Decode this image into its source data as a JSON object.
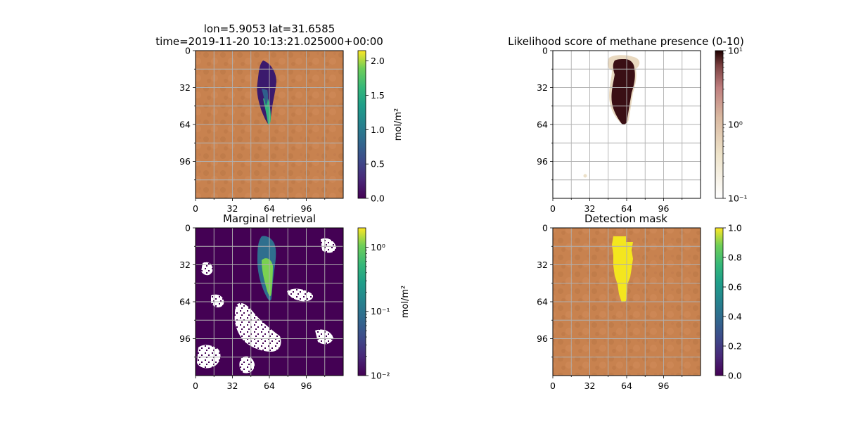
{
  "chart_data": [
    {
      "id": "retrieval",
      "type": "heatmap",
      "title_lines": [
        "lon=5.9053 lat=31.6585",
        "time=2019-11-20 10:13:21.025000+00:00"
      ],
      "background": "terrain-orange",
      "xticks": [
        0,
        32,
        64,
        96
      ],
      "yticks": [
        0,
        32,
        64,
        96
      ],
      "xlim": [
        0,
        128
      ],
      "ylim": [
        128,
        0
      ],
      "grid": true,
      "colormap": "viridis",
      "colorbar": {
        "label": "mol/m²",
        "scale": "linear",
        "range": [
          0,
          2.15
        ],
        "ticks": [
          "0.0",
          "0.5",
          "1.0",
          "1.5",
          "2.0"
        ],
        "tick_values": [
          0,
          0.5,
          1.0,
          1.5,
          2.0
        ]
      },
      "plume": {
        "color_low": "#3b1a6d",
        "color_mid": "#2f5f8c",
        "color_high": "#31b57b"
      }
    },
    {
      "id": "likelihood",
      "type": "heatmap",
      "title_lines": [
        "Likelihood score of methane presence (0-10)"
      ],
      "background": "white",
      "xticks": [
        0,
        32,
        64,
        96
      ],
      "yticks": [
        0,
        32,
        64,
        96
      ],
      "xlim": [
        0,
        128
      ],
      "ylim": [
        128,
        0
      ],
      "grid": true,
      "colormap": "pink_r",
      "colorbar": {
        "label": "",
        "scale": "log",
        "range": [
          0.1,
          10
        ],
        "ticks": [
          "10¹",
          "10⁰",
          "10⁻¹"
        ],
        "tick_values": [
          10,
          1,
          0.1
        ]
      },
      "plume": {
        "color_core": "#3a0f14",
        "color_edge": "#c9a89a"
      }
    },
    {
      "id": "marginal",
      "type": "heatmap",
      "title_lines": [
        "Marginal retrieval"
      ],
      "background": "dark-purple",
      "xticks": [
        0,
        32,
        64,
        96
      ],
      "yticks": [
        0,
        32,
        64,
        96
      ],
      "xlim": [
        0,
        128
      ],
      "ylim": [
        128,
        0
      ],
      "grid": true,
      "colormap": "viridis",
      "colorbar": {
        "label": "mol/m²",
        "scale": "log",
        "range": [
          0.01,
          2
        ],
        "ticks": [
          "10⁰",
          "10⁻¹",
          "10⁻²"
        ],
        "tick_values": [
          1,
          0.1,
          0.01
        ]
      },
      "plume": {
        "color_low": "#2f6f8e",
        "color_high": "#7ad151"
      }
    },
    {
      "id": "mask",
      "type": "heatmap",
      "title_lines": [
        "Detection mask"
      ],
      "background": "terrain-orange",
      "xticks": [
        0,
        32,
        64,
        96
      ],
      "yticks": [
        0,
        32,
        64,
        96
      ],
      "xlim": [
        0,
        128
      ],
      "ylim": [
        128,
        0
      ],
      "grid": true,
      "colormap": "viridis",
      "colorbar": {
        "label": "",
        "scale": "linear",
        "range": [
          0,
          1
        ],
        "ticks": [
          "0.0",
          "0.2",
          "0.4",
          "0.6",
          "0.8",
          "1.0"
        ],
        "tick_values": [
          0,
          0.2,
          0.4,
          0.6,
          0.8,
          1.0
        ]
      },
      "plume": {
        "color_core": "#f4e61e"
      }
    }
  ]
}
